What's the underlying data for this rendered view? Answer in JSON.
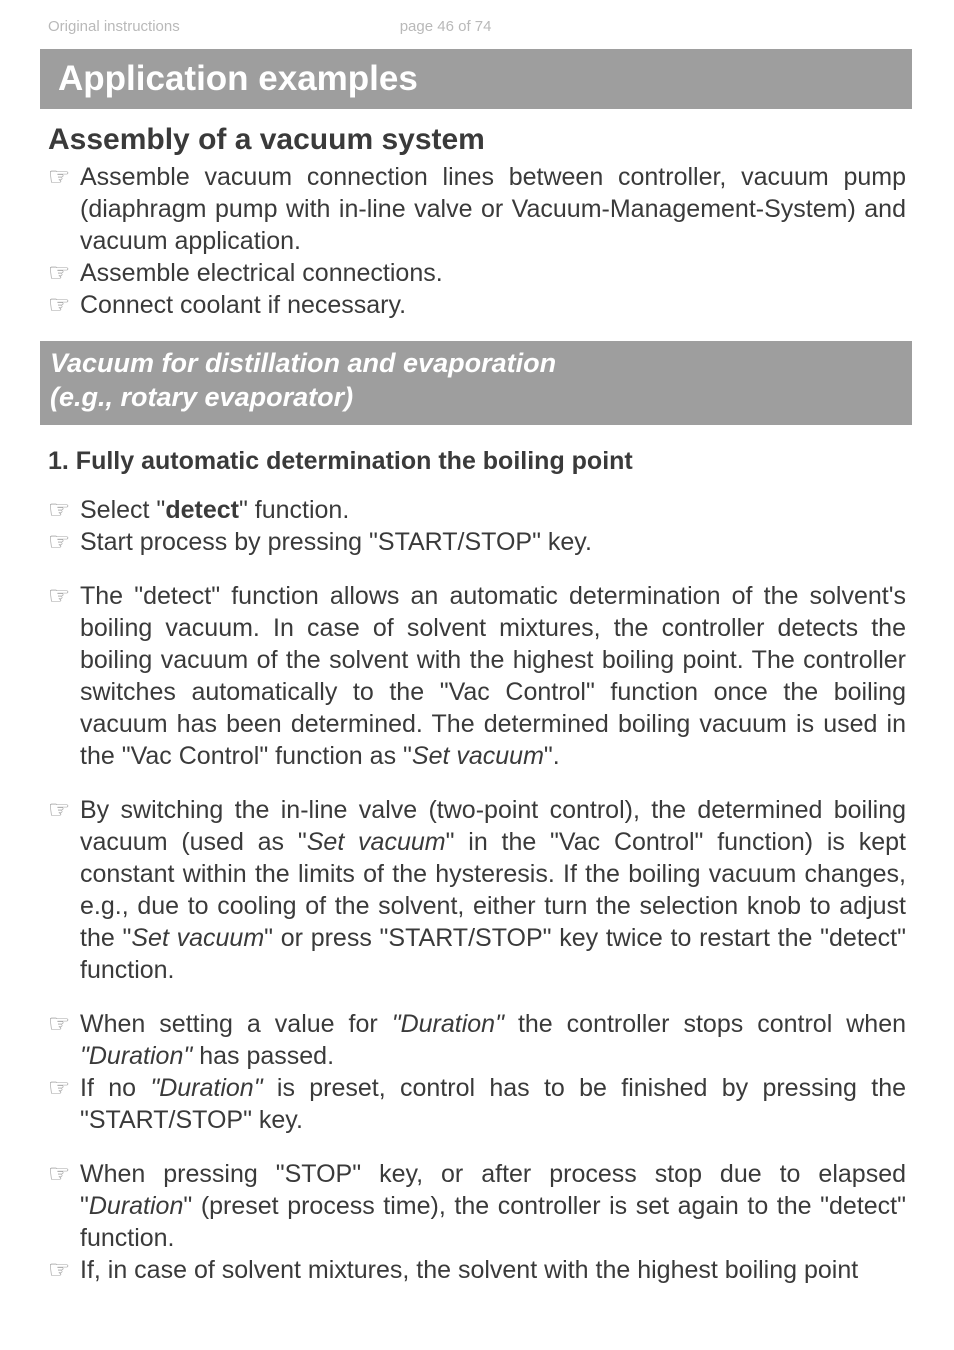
{
  "header": {
    "left": "Original instructions",
    "center": "page 46 of 74"
  },
  "banner_title": "Application examples",
  "section_title": "Assembly of a vacuum system",
  "assembly_items": [
    "Assemble vacuum connection lines between controller, vacuum pump (diaphragm pump with in-line valve or Vacuum-Management-System) and vacuum application.",
    "Assemble electrical connections.",
    "Connect coolant if necessary."
  ],
  "sub_banner_line1": " Vacuum for distillation and evaporation",
  "sub_banner_line2": "(e.g., rotary evaporator)",
  "step_title": "1. Fully automatic determination the boiling point",
  "p1_a": "Select \"",
  "p1_b": "detect",
  "p1_c": "\" function.",
  "p2": "Start process by pressing \"START/STOP\" key.",
  "p3_a": "The \"detect\" function allows an automatic determination of the solvent's boiling vacuum. In case of solvent mixtures, the controller detects the boiling vacuum of the solvent with the highest boiling point. The controller switches automatically to the \"Vac Control\" function once the boiling vacuum has been determined. The determined boiling vacuum is used in the  \"Vac Control\" function as \"",
  "p3_b": "Set vacuum",
  "p3_c": "\".",
  "p4_a": "By switching the in-line valve (two-point control), the determined boiling vacuum (used as \"",
  "p4_b": "Set vacuum",
  "p4_c": "\" in the \"Vac Control\" function) is kept constant within the limits of the hysteresis. If the boiling vacuum changes, e.g., due to cooling of the solvent, either turn the selection knob to adjust the \"",
  "p4_d": "Set vacuum",
  "p4_e": "\" or press \"START/STOP\" key twice to restart the \"detect\" function.",
  "p5_a": "When setting a value for ",
  "p5_b": "\"Duration\"",
  "p5_c": " the controller stops control when ",
  "p5_d": "\"Duration\"",
  "p5_e": "  has passed.",
  "p6_a": "If no ",
  "p6_b": "\"Duration\"",
  "p6_c": " is preset, control has to be finished by pressing the \"START/STOP\" key.",
  "p7_a": "When pressing \"STOP\" key, or after process stop due to elapsed \"",
  "p7_b": "Duration",
  "p7_c": "\" (preset process time), the controller is set again to the \"detect\" function.",
  "p8": "If, in case of solvent mixtures, the solvent with the highest boiling point"
}
